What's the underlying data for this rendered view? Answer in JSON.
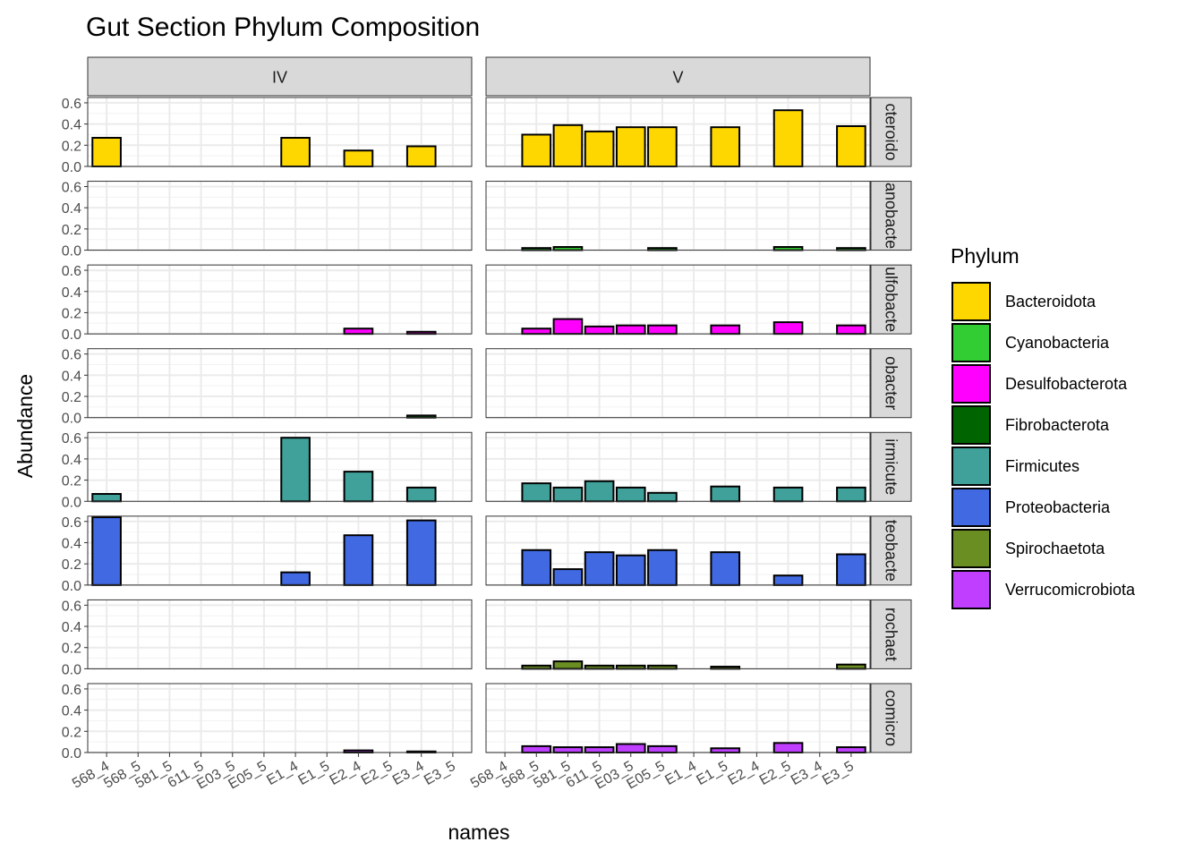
{
  "chart_data": {
    "type": "bar",
    "title": "Gut Section Phylum Composition",
    "xlabel": "names",
    "ylabel": "Abundance",
    "ylim": [
      0,
      0.65
    ],
    "yticks": [
      "0.0",
      "0.2",
      "0.4",
      "0.6"
    ],
    "grid": true,
    "legend_position": "right",
    "legend_title": "Phylum",
    "categories": [
      "568_4",
      "568_5",
      "581_5",
      "611_5",
      "E03_5",
      "E05_5",
      "E1_4",
      "E1_5",
      "E2_4",
      "E2_5",
      "E3_4",
      "E3_5"
    ],
    "column_facets": [
      "IV",
      "V"
    ],
    "row_facets": [
      {
        "label": "Bacteroidota",
        "strip_text": "cteroido"
      },
      {
        "label": "Cyanobacteria",
        "strip_text": "anobacte"
      },
      {
        "label": "Desulfobacterota",
        "strip_text": "ulfobacte"
      },
      {
        "label": "Fibrobacterota",
        "strip_text": "obacter"
      },
      {
        "label": "Firmicutes",
        "strip_text": "irmicute"
      },
      {
        "label": "Proteobacteria",
        "strip_text": "teobacte"
      },
      {
        "label": "Spirochaetota",
        "strip_text": "rochaet"
      },
      {
        "label": "Verrucomicrobiota",
        "strip_text": "comicro"
      }
    ],
    "series": [
      {
        "name": "Bacteroidota",
        "color": "#FFD700",
        "IV": [
          0.27,
          null,
          null,
          null,
          null,
          null,
          0.27,
          null,
          0.15,
          null,
          0.19,
          null
        ],
        "V": [
          null,
          0.3,
          0.39,
          0.33,
          0.37,
          0.37,
          null,
          0.37,
          null,
          0.53,
          null,
          0.38
        ]
      },
      {
        "name": "Cyanobacteria",
        "color": "#32CD32",
        "IV": [
          null,
          null,
          null,
          null,
          null,
          null,
          null,
          null,
          null,
          null,
          null,
          null
        ],
        "V": [
          null,
          0.02,
          0.03,
          null,
          null,
          0.02,
          null,
          null,
          null,
          0.03,
          null,
          0.02
        ]
      },
      {
        "name": "Desulfobacterota",
        "color": "#FF00FF",
        "IV": [
          null,
          null,
          null,
          null,
          null,
          null,
          null,
          null,
          0.05,
          null,
          0.02,
          null
        ],
        "V": [
          null,
          0.05,
          0.14,
          0.07,
          0.08,
          0.08,
          null,
          0.08,
          null,
          0.11,
          null,
          0.08
        ]
      },
      {
        "name": "Fibrobacterota",
        "color": "#006400",
        "IV": [
          null,
          null,
          null,
          null,
          null,
          null,
          null,
          null,
          null,
          null,
          0.02,
          null
        ],
        "V": [
          null,
          null,
          null,
          null,
          null,
          null,
          null,
          null,
          null,
          null,
          null,
          null
        ]
      },
      {
        "name": "Firmicutes",
        "color": "#40A09A",
        "IV": [
          0.07,
          null,
          null,
          null,
          null,
          null,
          0.6,
          null,
          0.28,
          null,
          0.13,
          null
        ],
        "V": [
          null,
          0.17,
          0.13,
          0.19,
          0.13,
          0.08,
          null,
          0.14,
          null,
          0.13,
          null,
          0.13
        ]
      },
      {
        "name": "Proteobacteria",
        "color": "#4169E1",
        "IV": [
          0.64,
          null,
          null,
          null,
          null,
          null,
          0.12,
          null,
          0.47,
          null,
          0.61,
          null
        ],
        "V": [
          null,
          0.33,
          0.15,
          0.31,
          0.28,
          0.33,
          null,
          0.31,
          null,
          0.09,
          null,
          0.29
        ]
      },
      {
        "name": "Spirochaetota",
        "color": "#6B8E23",
        "IV": [
          null,
          null,
          null,
          null,
          null,
          null,
          null,
          null,
          null,
          null,
          null,
          null
        ],
        "V": [
          null,
          0.03,
          0.07,
          0.03,
          0.03,
          0.03,
          null,
          0.02,
          null,
          null,
          null,
          0.04
        ]
      },
      {
        "name": "Verrucomicrobiota",
        "color": "#BF3EFF",
        "IV": [
          null,
          null,
          null,
          null,
          null,
          null,
          null,
          null,
          0.02,
          null,
          0.01,
          null
        ],
        "V": [
          null,
          0.06,
          0.05,
          0.05,
          0.08,
          0.06,
          null,
          0.04,
          null,
          0.09,
          null,
          0.05
        ]
      }
    ]
  }
}
